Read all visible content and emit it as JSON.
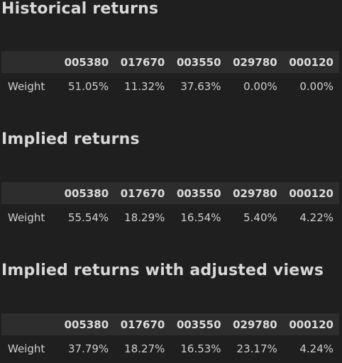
{
  "sections": [
    {
      "title": "Historical returns",
      "columns": [
        "005380",
        "017670",
        "003550",
        "029780",
        "000120"
      ],
      "row_label": "Weight",
      "values": [
        "51.05%",
        "11.32%",
        "37.63%",
        "0.00%",
        "0.00%"
      ]
    },
    {
      "title": "Implied returns",
      "columns": [
        "005380",
        "017670",
        "003550",
        "029780",
        "000120"
      ],
      "row_label": "Weight",
      "values": [
        "55.54%",
        "18.29%",
        "16.54%",
        "5.40%",
        "4.22%"
      ]
    },
    {
      "title": "Implied returns with adjusted views",
      "columns": [
        "005380",
        "017670",
        "003550",
        "029780",
        "000120"
      ],
      "row_label": "Weight",
      "values": [
        "37.79%",
        "18.27%",
        "16.53%",
        "23.17%",
        "4.24%"
      ]
    }
  ]
}
